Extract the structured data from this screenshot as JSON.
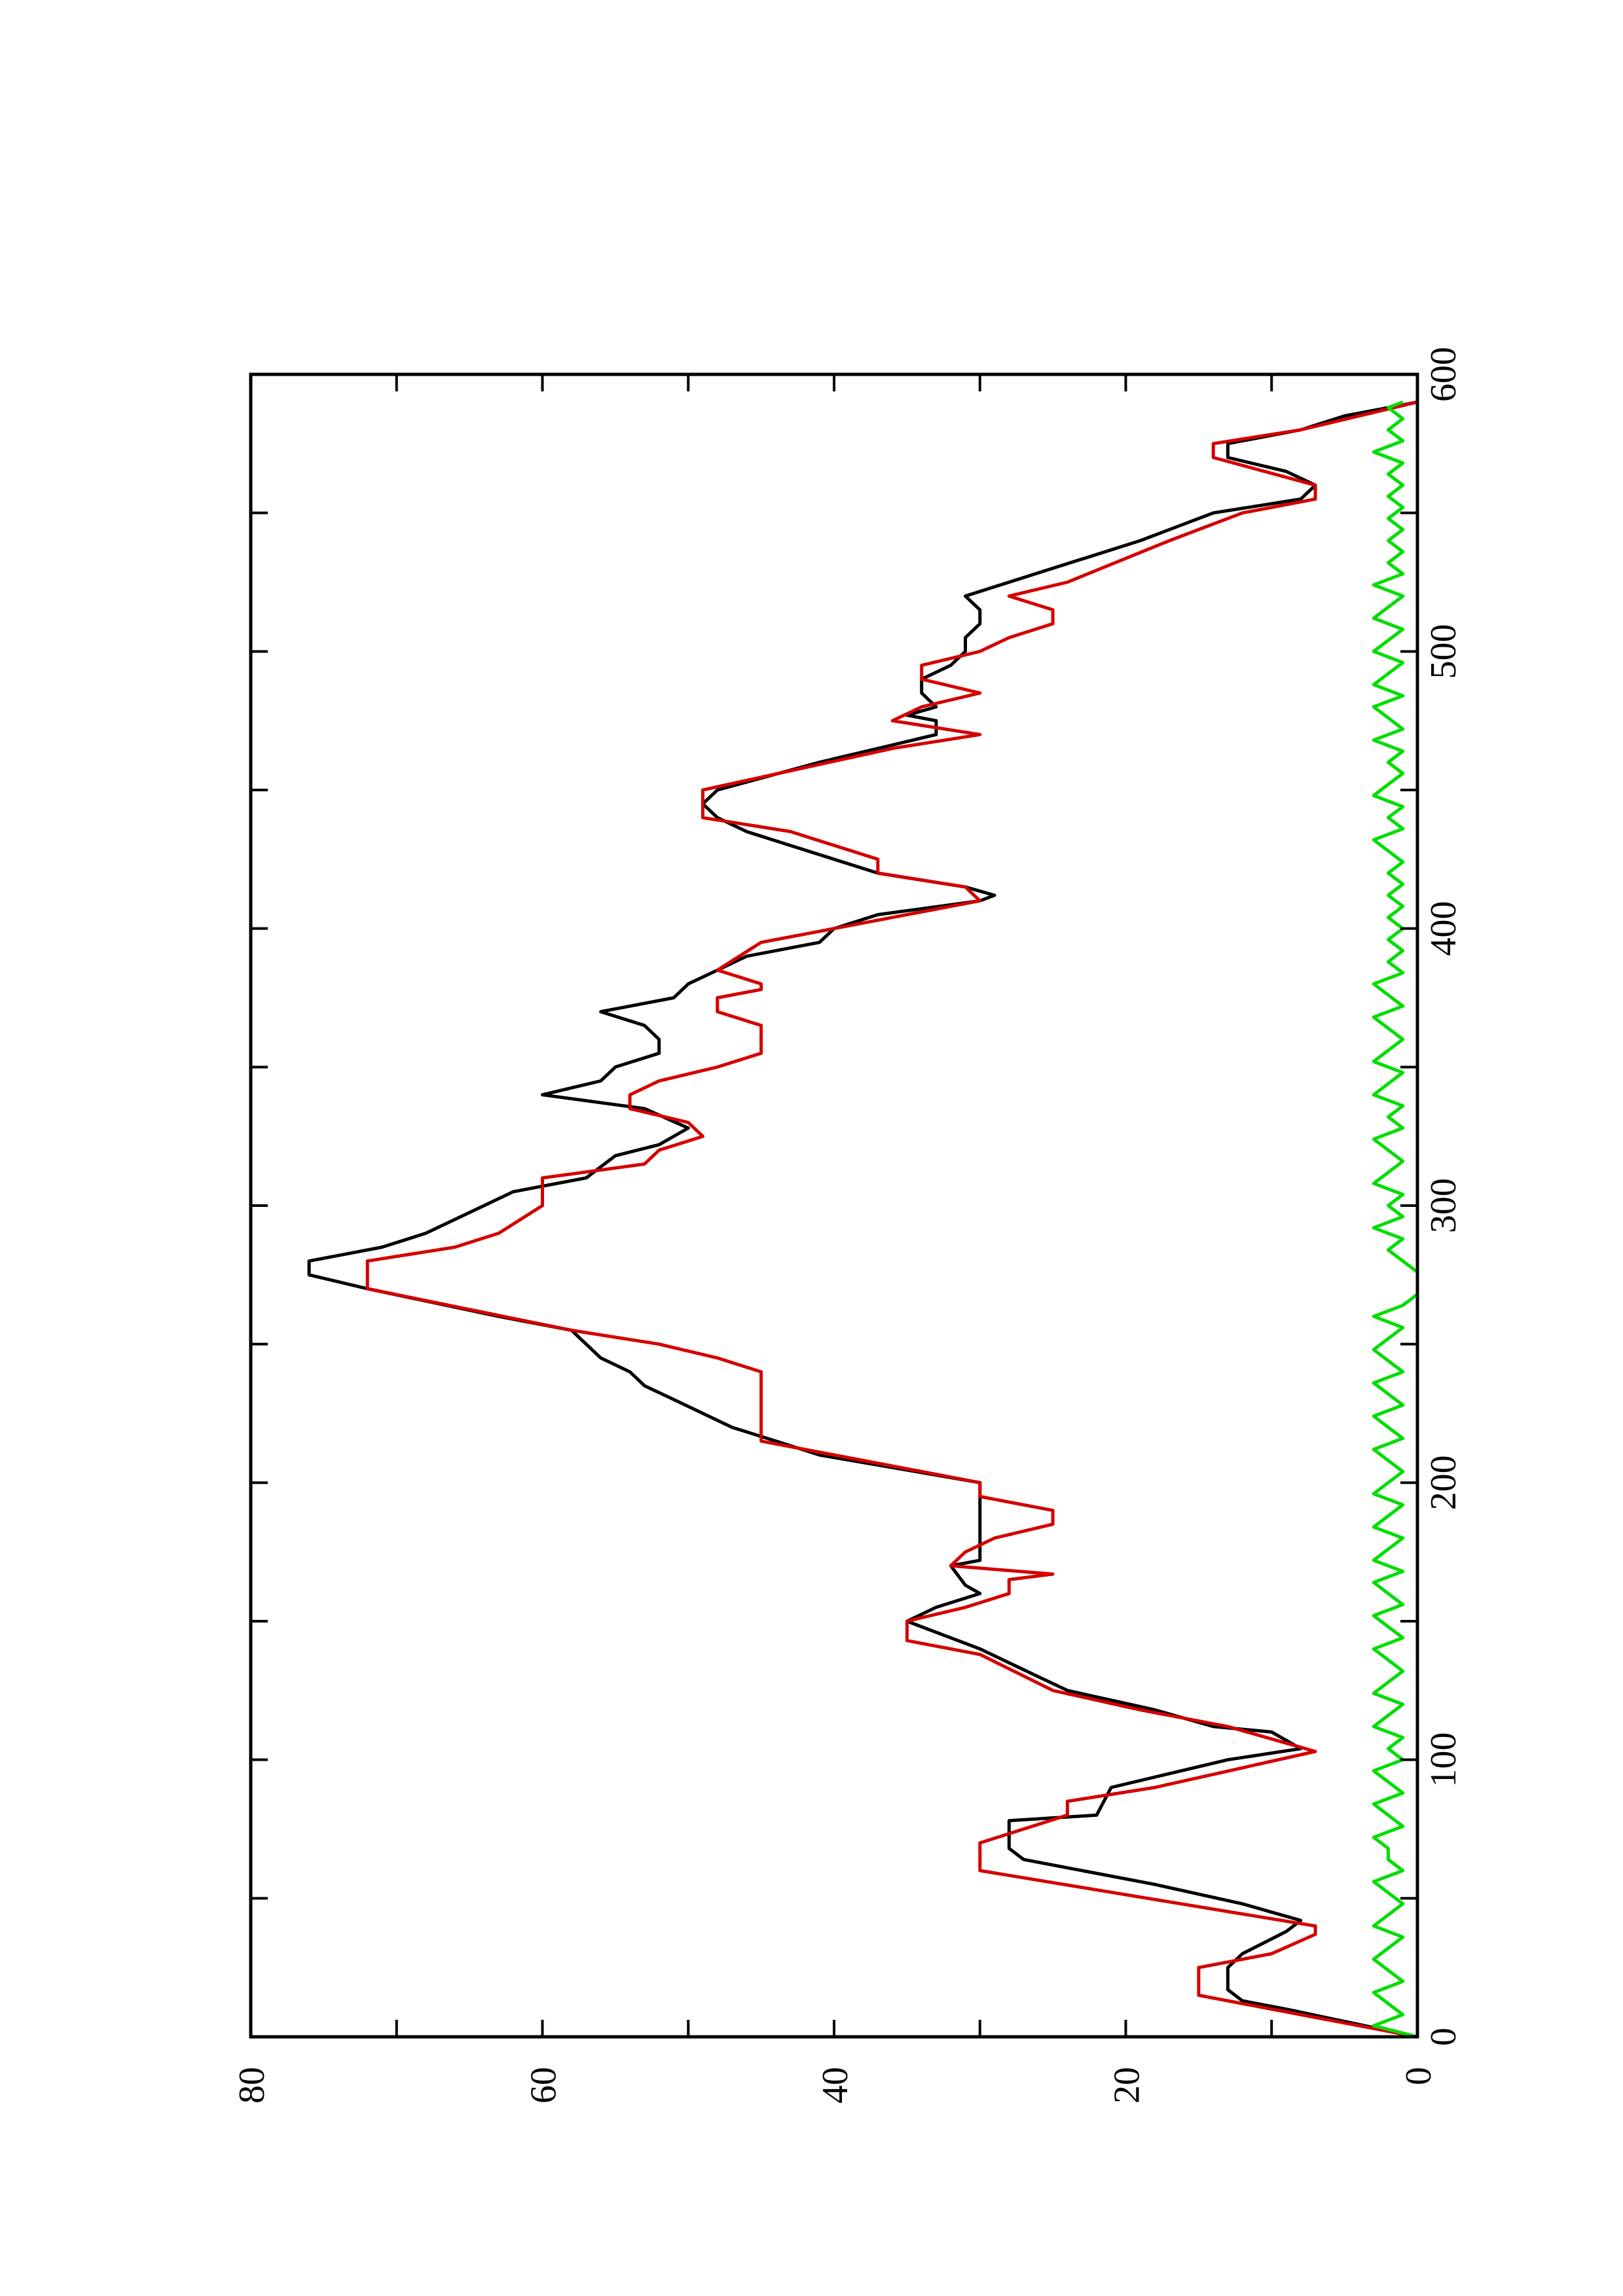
{
  "chart_data": {
    "type": "line",
    "orientation": "rotated 90° counter-clockwise (x axis runs bottom-to-top along the right edge)",
    "xlim": [
      0,
      600
    ],
    "ylim": [
      0,
      80
    ],
    "x_ticks": [
      0,
      100,
      200,
      300,
      400,
      500,
      600
    ],
    "x_tick_labels": [
      "0",
      "100",
      "200",
      "300",
      "400",
      "500",
      "600"
    ],
    "y_ticks": [
      0,
      20,
      40,
      60,
      80
    ],
    "y_tick_labels": [
      "0",
      "20",
      "40",
      "60",
      "80"
    ],
    "grid": false,
    "series": [
      {
        "color": "#000000",
        "points": [
          [
            0,
            0
          ],
          [
            10,
            9
          ],
          [
            13,
            12
          ],
          [
            17,
            13
          ],
          [
            25,
            13
          ],
          [
            30,
            12
          ],
          [
            38,
            9
          ],
          [
            42,
            8
          ],
          [
            48,
            12
          ],
          [
            55,
            18
          ],
          [
            60,
            23
          ],
          [
            64,
            27
          ],
          [
            68,
            28
          ],
          [
            78,
            28
          ],
          [
            80,
            22
          ],
          [
            90,
            21
          ],
          [
            100,
            13
          ],
          [
            104,
            8
          ],
          [
            110,
            10
          ],
          [
            112,
            14
          ],
          [
            118,
            18
          ],
          [
            125,
            24
          ],
          [
            130,
            26
          ],
          [
            140,
            30
          ],
          [
            150,
            35
          ],
          [
            155,
            33
          ],
          [
            160,
            30
          ],
          [
            163,
            31
          ],
          [
            170,
            32
          ],
          [
            172,
            30
          ],
          [
            180,
            30
          ],
          [
            190,
            30
          ],
          [
            200,
            30
          ],
          [
            210,
            41
          ],
          [
            215,
            44
          ],
          [
            220,
            47
          ],
          [
            230,
            51
          ],
          [
            235,
            53
          ],
          [
            240,
            54
          ],
          [
            245,
            56
          ],
          [
            255,
            58
          ],
          [
            260,
            63
          ],
          [
            270,
            72
          ],
          [
            275,
            76
          ],
          [
            280,
            76
          ],
          [
            285,
            71
          ],
          [
            290,
            68
          ],
          [
            300,
            64
          ],
          [
            305,
            62
          ],
          [
            310,
            57
          ],
          [
            318,
            55
          ],
          [
            322,
            52
          ],
          [
            328,
            50
          ],
          [
            335,
            53
          ],
          [
            340,
            60
          ],
          [
            345,
            56
          ],
          [
            350,
            55
          ],
          [
            355,
            52
          ],
          [
            360,
            52
          ],
          [
            365,
            53
          ],
          [
            370,
            56
          ],
          [
            375,
            51
          ],
          [
            380,
            50
          ],
          [
            385,
            48
          ],
          [
            390,
            46
          ],
          [
            395,
            41
          ],
          [
            400,
            40
          ],
          [
            405,
            37
          ],
          [
            410,
            30
          ],
          [
            412,
            29
          ],
          [
            415,
            31
          ],
          [
            420,
            37
          ],
          [
            430,
            43
          ],
          [
            435,
            46
          ],
          [
            440,
            48
          ],
          [
            445,
            49
          ],
          [
            450,
            48
          ],
          [
            460,
            41
          ],
          [
            465,
            37
          ],
          [
            470,
            33
          ],
          [
            475,
            33
          ],
          [
            477,
            35
          ],
          [
            480,
            33
          ],
          [
            485,
            34
          ],
          [
            490,
            34
          ],
          [
            495,
            32
          ],
          [
            500,
            31
          ],
          [
            505,
            31
          ],
          [
            510,
            30
          ],
          [
            515,
            30
          ],
          [
            520,
            31
          ],
          [
            525,
            28
          ],
          [
            530,
            25
          ],
          [
            540,
            19
          ],
          [
            550,
            14
          ],
          [
            555,
            8
          ],
          [
            560,
            7
          ],
          [
            565,
            9
          ],
          [
            570,
            13
          ],
          [
            575,
            13
          ],
          [
            580,
            8
          ],
          [
            585,
            5
          ],
          [
            590,
            0
          ]
        ]
      },
      {
        "color": "#d40000",
        "points": [
          [
            0,
            0
          ],
          [
            10,
            10
          ],
          [
            15,
            15
          ],
          [
            25,
            15
          ],
          [
            30,
            10
          ],
          [
            37,
            7
          ],
          [
            40,
            7
          ],
          [
            60,
            30
          ],
          [
            70,
            30
          ],
          [
            80,
            24
          ],
          [
            85,
            24
          ],
          [
            90,
            18
          ],
          [
            103,
            7
          ],
          [
            112,
            13
          ],
          [
            118,
            19
          ],
          [
            125,
            25
          ],
          [
            138,
            30
          ],
          [
            143,
            35
          ],
          [
            150,
            35
          ],
          [
            155,
            31
          ],
          [
            160,
            28
          ],
          [
            165,
            28
          ],
          [
            167,
            25
          ],
          [
            170,
            32
          ],
          [
            175,
            31
          ],
          [
            180,
            29
          ],
          [
            185,
            25
          ],
          [
            190,
            25
          ],
          [
            195,
            30
          ],
          [
            200,
            30
          ],
          [
            215,
            45
          ],
          [
            240,
            45
          ],
          [
            245,
            48
          ],
          [
            250,
            52
          ],
          [
            255,
            58
          ],
          [
            270,
            72
          ],
          [
            280,
            72
          ],
          [
            285,
            66
          ],
          [
            290,
            63
          ],
          [
            300,
            60
          ],
          [
            310,
            60
          ],
          [
            315,
            53
          ],
          [
            320,
            52
          ],
          [
            325,
            49
          ],
          [
            330,
            50
          ],
          [
            335,
            54
          ],
          [
            340,
            54
          ],
          [
            345,
            52
          ],
          [
            350,
            48
          ],
          [
            355,
            45
          ],
          [
            365,
            45
          ],
          [
            370,
            48
          ],
          [
            375,
            48
          ],
          [
            378,
            45
          ],
          [
            380,
            45
          ],
          [
            385,
            48
          ],
          [
            395,
            45
          ],
          [
            400,
            40
          ],
          [
            410,
            30
          ],
          [
            415,
            31
          ],
          [
            420,
            37
          ],
          [
            425,
            37
          ],
          [
            435,
            43
          ],
          [
            440,
            49
          ],
          [
            450,
            49
          ],
          [
            465,
            36
          ],
          [
            470,
            30
          ],
          [
            475,
            36
          ],
          [
            480,
            34
          ],
          [
            485,
            30
          ],
          [
            490,
            34
          ],
          [
            495,
            34
          ],
          [
            500,
            30
          ],
          [
            505,
            28
          ],
          [
            510,
            25
          ],
          [
            515,
            25
          ],
          [
            520,
            28
          ],
          [
            525,
            24
          ],
          [
            540,
            17
          ],
          [
            550,
            12
          ],
          [
            555,
            7
          ],
          [
            560,
            7
          ],
          [
            570,
            14
          ],
          [
            575,
            14
          ],
          [
            580,
            8
          ],
          [
            590,
            0
          ]
        ]
      },
      {
        "color": "#00dd00",
        "points": [
          [
            0,
            0
          ],
          [
            4,
            3
          ],
          [
            8,
            1
          ],
          [
            12,
            2
          ],
          [
            16,
            3
          ],
          [
            20,
            1
          ],
          [
            24,
            2
          ],
          [
            28,
            3
          ],
          [
            32,
            2
          ],
          [
            36,
            1
          ],
          [
            40,
            3
          ],
          [
            44,
            2
          ],
          [
            48,
            1
          ],
          [
            52,
            2
          ],
          [
            56,
            3
          ],
          [
            60,
            1
          ],
          [
            64,
            2
          ],
          [
            68,
            2
          ],
          [
            72,
            3
          ],
          [
            76,
            1
          ],
          [
            80,
            2
          ],
          [
            84,
            3
          ],
          [
            88,
            1
          ],
          [
            92,
            2
          ],
          [
            96,
            3
          ],
          [
            100,
            1
          ],
          [
            104,
            2
          ],
          [
            108,
            1
          ],
          [
            112,
            3
          ],
          [
            116,
            2
          ],
          [
            120,
            1
          ],
          [
            124,
            3
          ],
          [
            128,
            2
          ],
          [
            132,
            1
          ],
          [
            136,
            2
          ],
          [
            140,
            3
          ],
          [
            144,
            1
          ],
          [
            148,
            2
          ],
          [
            152,
            3
          ],
          [
            156,
            1
          ],
          [
            160,
            2
          ],
          [
            164,
            3
          ],
          [
            168,
            1
          ],
          [
            172,
            3
          ],
          [
            176,
            2
          ],
          [
            180,
            1
          ],
          [
            184,
            3
          ],
          [
            188,
            2
          ],
          [
            192,
            1
          ],
          [
            196,
            3
          ],
          [
            200,
            2
          ],
          [
            204,
            1
          ],
          [
            208,
            2
          ],
          [
            212,
            3
          ],
          [
            216,
            1
          ],
          [
            220,
            2
          ],
          [
            224,
            3
          ],
          [
            228,
            1
          ],
          [
            232,
            2
          ],
          [
            236,
            3
          ],
          [
            240,
            1
          ],
          [
            244,
            2
          ],
          [
            248,
            3
          ],
          [
            252,
            2
          ],
          [
            256,
            1
          ],
          [
            260,
            3
          ],
          [
            264,
            1
          ],
          [
            268,
            0
          ],
          [
            272,
            0
          ],
          [
            276,
            0
          ],
          [
            280,
            1
          ],
          [
            284,
            2
          ],
          [
            288,
            1
          ],
          [
            292,
            3
          ],
          [
            296,
            1
          ],
          [
            300,
            2
          ],
          [
            304,
            1
          ],
          [
            308,
            3
          ],
          [
            312,
            2
          ],
          [
            316,
            1
          ],
          [
            320,
            2
          ],
          [
            324,
            3
          ],
          [
            328,
            1
          ],
          [
            332,
            2
          ],
          [
            336,
            1
          ],
          [
            340,
            3
          ],
          [
            344,
            2
          ],
          [
            348,
            1
          ],
          [
            352,
            3
          ],
          [
            356,
            2
          ],
          [
            360,
            1
          ],
          [
            364,
            2
          ],
          [
            368,
            3
          ],
          [
            372,
            1
          ],
          [
            376,
            2
          ],
          [
            380,
            3
          ],
          [
            384,
            1
          ],
          [
            388,
            2
          ],
          [
            392,
            1
          ],
          [
            396,
            2
          ],
          [
            400,
            1
          ],
          [
            404,
            2
          ],
          [
            408,
            1
          ],
          [
            412,
            2
          ],
          [
            416,
            1
          ],
          [
            420,
            2
          ],
          [
            424,
            1
          ],
          [
            428,
            2
          ],
          [
            432,
            3
          ],
          [
            436,
            1
          ],
          [
            440,
            2
          ],
          [
            444,
            1
          ],
          [
            448,
            3
          ],
          [
            452,
            2
          ],
          [
            456,
            1
          ],
          [
            460,
            2
          ],
          [
            464,
            1
          ],
          [
            468,
            3
          ],
          [
            472,
            1
          ],
          [
            476,
            2
          ],
          [
            480,
            3
          ],
          [
            484,
            1
          ],
          [
            488,
            3
          ],
          [
            492,
            2
          ],
          [
            496,
            1
          ],
          [
            500,
            3
          ],
          [
            504,
            2
          ],
          [
            508,
            1
          ],
          [
            512,
            3
          ],
          [
            516,
            2
          ],
          [
            520,
            1
          ],
          [
            524,
            3
          ],
          [
            528,
            1
          ],
          [
            532,
            2
          ],
          [
            536,
            1
          ],
          [
            540,
            2
          ],
          [
            544,
            1
          ],
          [
            548,
            2
          ],
          [
            552,
            1
          ],
          [
            556,
            2
          ],
          [
            560,
            1
          ],
          [
            564,
            2
          ],
          [
            568,
            1
          ],
          [
            572,
            3
          ],
          [
            576,
            1
          ],
          [
            580,
            2
          ],
          [
            584,
            1
          ],
          [
            588,
            2
          ],
          [
            590,
            1
          ]
        ]
      }
    ]
  }
}
